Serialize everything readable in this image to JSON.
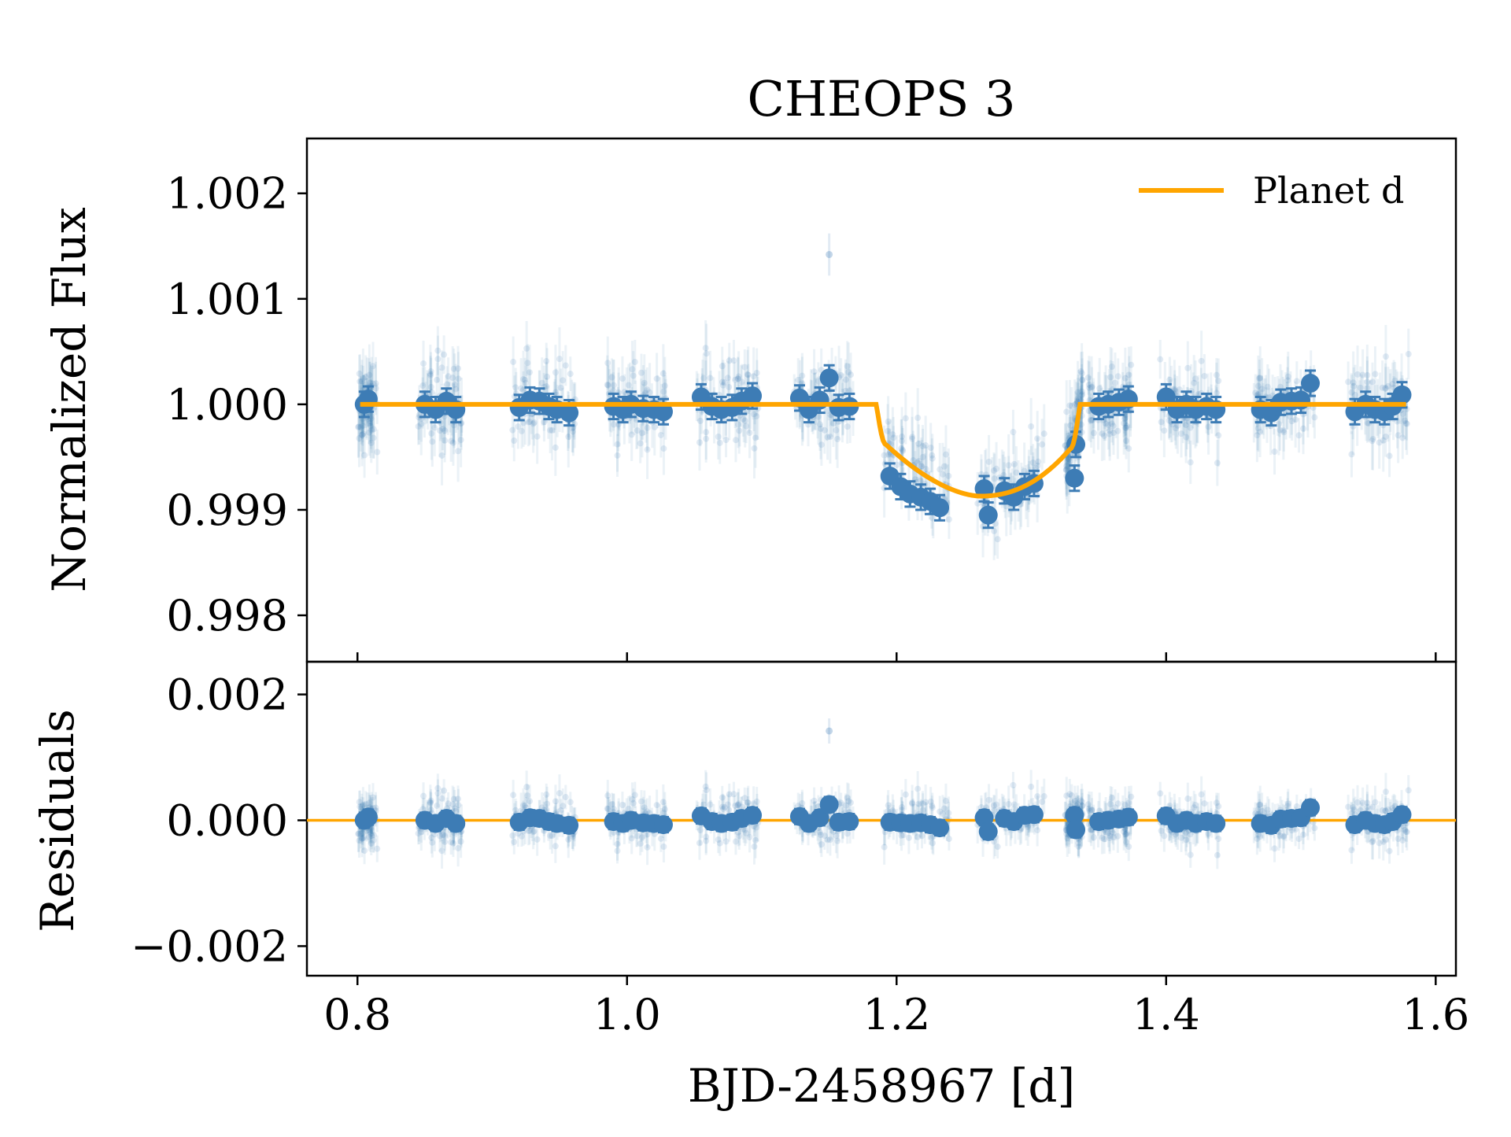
{
  "chart_data": {
    "type": "scatter",
    "title": "CHEOPS 3",
    "xlabel": "BJD-2458967 [d]",
    "xlim": [
      0.7625,
      1.615
    ],
    "x_ticks": [
      0.8,
      1.0,
      1.2,
      1.4,
      1.6
    ],
    "x_tick_labels": [
      "0.8",
      "1.0",
      "1.2",
      "1.4",
      "1.6"
    ],
    "colors": {
      "data": "#3d7cb5",
      "model": "#ffa500",
      "axes": "#000000"
    },
    "panels": [
      {
        "name": "flux",
        "ylabel": "Normalized Flux",
        "ylim": [
          0.99756,
          1.00252
        ],
        "y_ticks": [
          0.998,
          0.999,
          1.0,
          1.001,
          1.002
        ],
        "y_tick_labels": [
          "0.998",
          "0.999",
          "1.000",
          "1.001",
          "1.002"
        ],
        "legend": {
          "label": "Planet d",
          "location": "top-right"
        }
      },
      {
        "name": "residuals",
        "ylabel": "Residuals",
        "ylim": [
          -0.00247,
          0.00252
        ],
        "y_ticks": [
          -0.002,
          0.0,
          0.002
        ],
        "y_tick_labels": [
          "−0.002",
          "0.000",
          "0.002"
        ]
      }
    ],
    "transit_model": {
      "name": "Planet d",
      "baseline": 1.0,
      "t_ingress_start": 1.185,
      "t_ingress_end": 1.192,
      "t_egress_start": 1.329,
      "t_egress_end": 1.336,
      "ingress_level": 0.99962,
      "egress_level": 0.99958,
      "depth_min": 0.99913,
      "t_min": 1.262
    },
    "binned_points": {
      "t": [
        0.805,
        0.808,
        0.85,
        0.858,
        0.866,
        0.873,
        0.92,
        0.928,
        0.935,
        0.942,
        0.948,
        0.957,
        0.99,
        0.997,
        1.003,
        1.012,
        1.02,
        1.027,
        1.055,
        1.063,
        1.07,
        1.078,
        1.085,
        1.093,
        1.128,
        1.135,
        1.143,
        1.15,
        1.157,
        1.165,
        1.195,
        1.203,
        1.21,
        1.218,
        1.225,
        1.232,
        1.265,
        1.268,
        1.28,
        1.287,
        1.295,
        1.302,
        1.332,
        1.333,
        1.35,
        1.357,
        1.365,
        1.372,
        1.4,
        1.408,
        1.415,
        1.422,
        1.43,
        1.437,
        1.47,
        1.478,
        1.485,
        1.493,
        1.5,
        1.507,
        1.54,
        1.548,
        1.555,
        1.562,
        1.568,
        1.575
      ],
      "flux": [
        1.0,
        1.00005,
        1.0,
        0.99995,
        1.00003,
        0.99995,
        0.99997,
        1.00004,
        1.00003,
        0.99998,
        0.99995,
        0.99992,
        0.99998,
        0.99995,
        1.0,
        0.99996,
        0.99995,
        0.99993,
        1.00007,
        0.99998,
        0.99995,
        0.99997,
        1.00003,
        1.00008,
        1.00006,
        0.99995,
        1.00004,
        1.00025,
        0.99997,
        0.99998,
        0.99932,
        0.99922,
        0.99915,
        0.99912,
        0.99908,
        0.99902,
        0.9992,
        0.99895,
        0.99918,
        0.99912,
        0.99922,
        0.99925,
        0.9993,
        0.99962,
        0.99998,
        1.0,
        1.00002,
        1.00005,
        1.00007,
        0.99995,
        1.0,
        0.99995,
        0.99998,
        0.99995,
        0.99995,
        0.99992,
        1.00002,
        1.00003,
        1.00004,
        1.0002,
        0.99993,
        1.0,
        0.99995,
        0.99993,
        0.99998,
        1.00009
      ],
      "residual": [
        0.0,
        5e-05,
        0.0,
        -5e-05,
        3e-05,
        -5e-05,
        -3e-05,
        4e-05,
        3e-05,
        -2e-05,
        -5e-05,
        -8e-05,
        -2e-05,
        -5e-05,
        0.0,
        -4e-05,
        -5e-05,
        -7e-05,
        7e-05,
        -2e-05,
        -5e-05,
        -3e-05,
        3e-05,
        8e-05,
        6e-05,
        -5e-05,
        4e-05,
        0.00025,
        -3e-05,
        -2e-05,
        -3e-05,
        -4e-05,
        -5e-05,
        -4e-05,
        -7e-05,
        -0.00012,
        4e-05,
        -0.00018,
        3e-05,
        -2e-05,
        8e-05,
        9e-05,
        8e-05,
        -0.00015,
        -2e-05,
        0.0,
        2e-05,
        5e-05,
        7e-05,
        -5e-05,
        0.0,
        -5e-05,
        -2e-05,
        -5e-05,
        -5e-05,
        -8e-05,
        2e-05,
        3e-05,
        4e-05,
        0.0002,
        -7e-05,
        0.0,
        -5e-05,
        -7e-05,
        -2e-05,
        9e-05
      ],
      "error": 0.00012
    },
    "raw_points": {
      "segments": [
        [
          0.8,
          0.815
        ],
        [
          0.845,
          0.878
        ],
        [
          0.915,
          0.962
        ],
        [
          0.985,
          1.03
        ],
        [
          1.05,
          1.098
        ],
        [
          1.122,
          1.168
        ],
        [
          1.19,
          1.24
        ],
        [
          1.26,
          1.31
        ],
        [
          1.325,
          1.338
        ],
        [
          1.342,
          1.375
        ],
        [
          1.395,
          1.44
        ],
        [
          1.465,
          1.512
        ],
        [
          1.535,
          1.58
        ]
      ],
      "scatter_sigma": 0.0002,
      "count": 900,
      "outlier": {
        "t": 1.15,
        "flux": 1.00142,
        "residual": 0.00142
      }
    }
  }
}
